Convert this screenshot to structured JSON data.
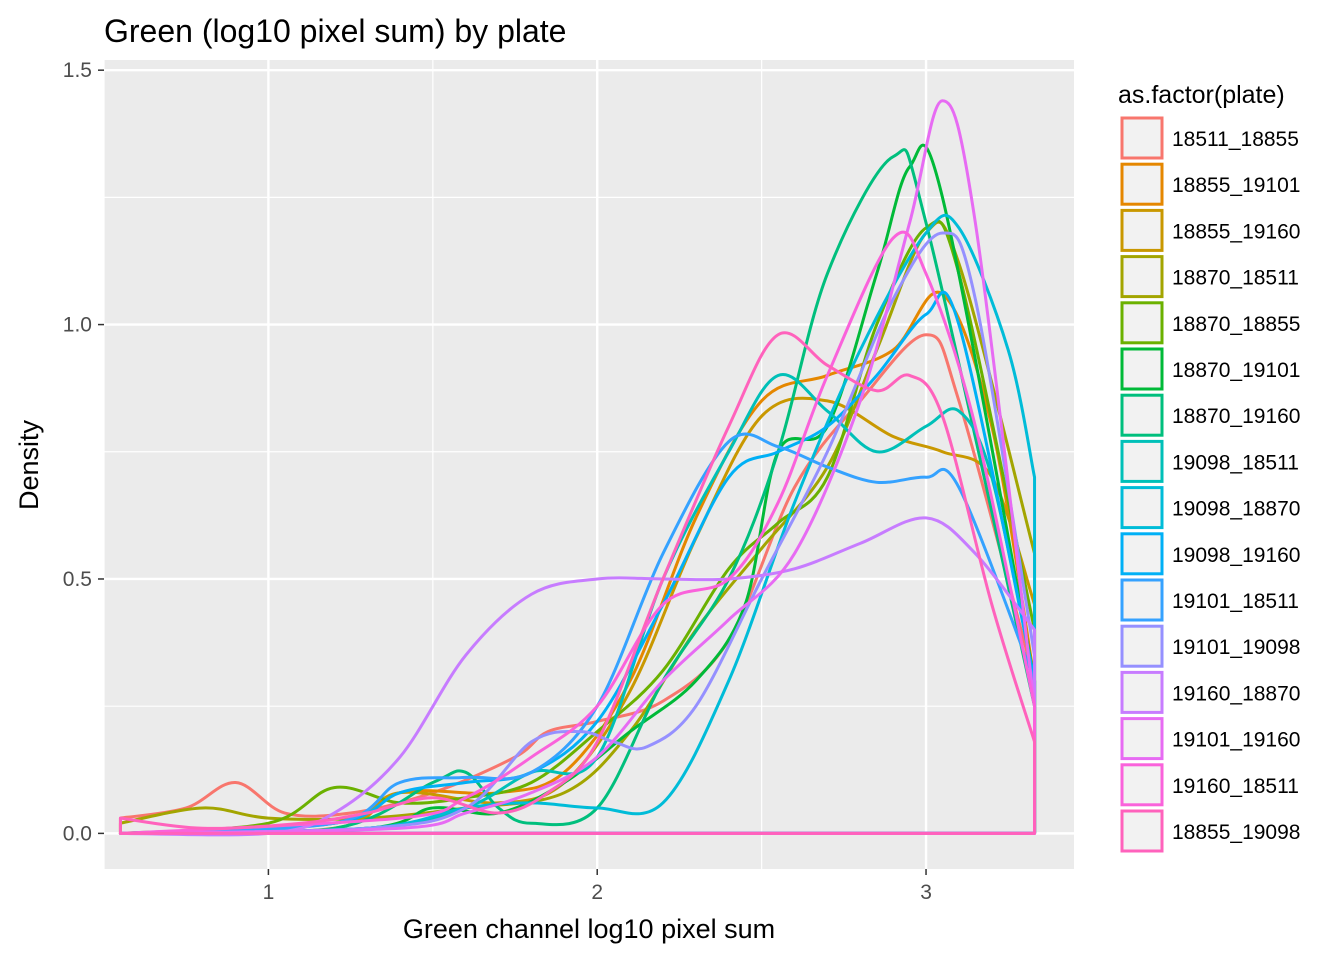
{
  "chart_data": {
    "type": "density",
    "title": "Green (log10 pixel sum) by plate",
    "xlabel": "Green channel log10 pixel sum",
    "ylabel": "Density",
    "xlim": [
      0.5,
      3.45
    ],
    "ylim": [
      -0.07,
      1.52
    ],
    "xticks": [
      1,
      2,
      3
    ],
    "xtick_labels": [
      "1",
      "2",
      "3"
    ],
    "yticks": [
      0,
      0.5,
      1,
      1.5
    ],
    "ytick_labels": [
      "0.0",
      "0.5",
      "1.0",
      "1.5"
    ],
    "x_range": [
      0.55,
      3.33
    ],
    "legend_title": "as.factor(plate)",
    "legend_position": "right",
    "series": [
      {
        "name": "18511_18855",
        "color": "#F8766D",
        "points": [
          [
            0.55,
            0.03
          ],
          [
            0.75,
            0.05
          ],
          [
            0.9,
            0.1
          ],
          [
            1.05,
            0.04
          ],
          [
            1.25,
            0.04
          ],
          [
            1.5,
            0.08
          ],
          [
            1.75,
            0.15
          ],
          [
            1.85,
            0.2
          ],
          [
            2.0,
            0.22
          ],
          [
            2.2,
            0.26
          ],
          [
            2.4,
            0.38
          ],
          [
            2.6,
            0.68
          ],
          [
            2.8,
            0.85
          ],
          [
            3.0,
            0.98
          ],
          [
            3.1,
            0.85
          ],
          [
            3.33,
            0.3
          ]
        ]
      },
      {
        "name": "18855_19101",
        "color": "#E58700",
        "points": [
          [
            0.55,
            0.0
          ],
          [
            1.2,
            0.01
          ],
          [
            1.4,
            0.08
          ],
          [
            1.7,
            0.08
          ],
          [
            1.9,
            0.12
          ],
          [
            2.1,
            0.3
          ],
          [
            2.3,
            0.62
          ],
          [
            2.5,
            0.85
          ],
          [
            2.7,
            0.9
          ],
          [
            2.9,
            0.95
          ],
          [
            3.05,
            1.06
          ],
          [
            3.2,
            0.8
          ],
          [
            3.33,
            0.3
          ]
        ]
      },
      {
        "name": "18855_19160",
        "color": "#C99800",
        "points": [
          [
            0.55,
            0.0
          ],
          [
            1.2,
            0.02
          ],
          [
            1.4,
            0.08
          ],
          [
            1.7,
            0.06
          ],
          [
            1.9,
            0.1
          ],
          [
            2.1,
            0.28
          ],
          [
            2.3,
            0.58
          ],
          [
            2.5,
            0.82
          ],
          [
            2.7,
            0.85
          ],
          [
            2.9,
            0.78
          ],
          [
            3.05,
            0.75
          ],
          [
            3.2,
            0.7
          ],
          [
            3.33,
            0.45
          ]
        ]
      },
      {
        "name": "18870_18511",
        "color": "#A3A500",
        "points": [
          [
            0.55,
            0.02
          ],
          [
            0.8,
            0.05
          ],
          [
            1.0,
            0.03
          ],
          [
            1.3,
            0.03
          ],
          [
            1.6,
            0.05
          ],
          [
            1.9,
            0.08
          ],
          [
            2.1,
            0.2
          ],
          [
            2.3,
            0.4
          ],
          [
            2.5,
            0.56
          ],
          [
            2.7,
            0.72
          ],
          [
            2.85,
            0.95
          ],
          [
            3.0,
            1.18
          ],
          [
            3.1,
            1.12
          ],
          [
            3.33,
            0.55
          ]
        ]
      },
      {
        "name": "18870_18855",
        "color": "#6BB100",
        "points": [
          [
            0.55,
            0.0
          ],
          [
            1.0,
            0.02
          ],
          [
            1.2,
            0.09
          ],
          [
            1.4,
            0.06
          ],
          [
            1.6,
            0.07
          ],
          [
            1.8,
            0.1
          ],
          [
            2.0,
            0.2
          ],
          [
            2.2,
            0.32
          ],
          [
            2.4,
            0.52
          ],
          [
            2.55,
            0.61
          ],
          [
            2.7,
            0.7
          ],
          [
            2.85,
            1.0
          ],
          [
            3.0,
            1.19
          ],
          [
            3.1,
            1.1
          ],
          [
            3.33,
            0.4
          ]
        ]
      },
      {
        "name": "18870_19101",
        "color": "#00BA38",
        "points": [
          [
            0.55,
            0.0
          ],
          [
            1.3,
            0.01
          ],
          [
            1.5,
            0.05
          ],
          [
            1.7,
            0.04
          ],
          [
            1.9,
            0.1
          ],
          [
            2.1,
            0.2
          ],
          [
            2.3,
            0.3
          ],
          [
            2.45,
            0.45
          ],
          [
            2.55,
            0.75
          ],
          [
            2.7,
            0.8
          ],
          [
            2.85,
            1.1
          ],
          [
            2.95,
            1.31
          ],
          [
            3.05,
            1.25
          ],
          [
            3.33,
            0.3
          ]
        ]
      },
      {
        "name": "18870_19160",
        "color": "#00BF7D",
        "points": [
          [
            0.55,
            0.0
          ],
          [
            1.2,
            0.01
          ],
          [
            1.5,
            0.1
          ],
          [
            1.6,
            0.12
          ],
          [
            1.7,
            0.05
          ],
          [
            1.8,
            0.02
          ],
          [
            2.0,
            0.05
          ],
          [
            2.2,
            0.3
          ],
          [
            2.4,
            0.5
          ],
          [
            2.55,
            0.75
          ],
          [
            2.7,
            1.1
          ],
          [
            2.9,
            1.33
          ],
          [
            3.0,
            1.2
          ],
          [
            3.33,
            0.25
          ]
        ]
      },
      {
        "name": "19098_18511",
        "color": "#00C0B8",
        "points": [
          [
            0.55,
            0.0
          ],
          [
            1.3,
            0.01
          ],
          [
            1.6,
            0.05
          ],
          [
            1.8,
            0.12
          ],
          [
            2.0,
            0.15
          ],
          [
            2.2,
            0.5
          ],
          [
            2.4,
            0.75
          ],
          [
            2.55,
            0.9
          ],
          [
            2.7,
            0.83
          ],
          [
            2.85,
            0.75
          ],
          [
            3.0,
            0.8
          ],
          [
            3.1,
            0.83
          ],
          [
            3.2,
            0.7
          ],
          [
            3.33,
            0.3
          ]
        ]
      },
      {
        "name": "19098_18870",
        "color": "#00BCD8",
        "points": [
          [
            0.55,
            0.0
          ],
          [
            1.3,
            0.01
          ],
          [
            1.6,
            0.05
          ],
          [
            1.8,
            0.06
          ],
          [
            2.0,
            0.05
          ],
          [
            2.2,
            0.06
          ],
          [
            2.4,
            0.3
          ],
          [
            2.6,
            0.65
          ],
          [
            2.8,
            0.95
          ],
          [
            3.0,
            1.18
          ],
          [
            3.1,
            1.19
          ],
          [
            3.25,
            0.95
          ],
          [
            3.33,
            0.7
          ]
        ]
      },
      {
        "name": "19098_19160",
        "color": "#00B0F6",
        "points": [
          [
            0.55,
            0.0
          ],
          [
            1.2,
            0.02
          ],
          [
            1.4,
            0.08
          ],
          [
            1.6,
            0.1
          ],
          [
            1.8,
            0.12
          ],
          [
            2.0,
            0.22
          ],
          [
            2.2,
            0.45
          ],
          [
            2.4,
            0.7
          ],
          [
            2.55,
            0.75
          ],
          [
            2.7,
            0.8
          ],
          [
            2.85,
            0.9
          ],
          [
            3.0,
            1.02
          ],
          [
            3.1,
            1.0
          ],
          [
            3.33,
            0.3
          ]
        ]
      },
      {
        "name": "19101_18511",
        "color": "#35A2FF",
        "points": [
          [
            0.55,
            0.0
          ],
          [
            1.2,
            0.02
          ],
          [
            1.4,
            0.1
          ],
          [
            1.6,
            0.11
          ],
          [
            1.8,
            0.12
          ],
          [
            2.0,
            0.25
          ],
          [
            2.2,
            0.55
          ],
          [
            2.4,
            0.77
          ],
          [
            2.55,
            0.76
          ],
          [
            2.7,
            0.72
          ],
          [
            2.85,
            0.69
          ],
          [
            3.0,
            0.7
          ],
          [
            3.1,
            0.68
          ],
          [
            3.33,
            0.3
          ]
        ]
      },
      {
        "name": "19101_19098",
        "color": "#9590FF",
        "points": [
          [
            0.55,
            0.0
          ],
          [
            1.3,
            0.01
          ],
          [
            1.6,
            0.05
          ],
          [
            1.8,
            0.18
          ],
          [
            1.95,
            0.2
          ],
          [
            2.05,
            0.18
          ],
          [
            2.15,
            0.17
          ],
          [
            2.3,
            0.25
          ],
          [
            2.5,
            0.5
          ],
          [
            2.7,
            0.75
          ],
          [
            2.9,
            1.05
          ],
          [
            3.05,
            1.18
          ],
          [
            3.15,
            1.05
          ],
          [
            3.33,
            0.35
          ]
        ]
      },
      {
        "name": "19160_18870",
        "color": "#C77CFF",
        "points": [
          [
            0.55,
            0.0
          ],
          [
            1.0,
            0.0
          ],
          [
            1.2,
            0.04
          ],
          [
            1.4,
            0.15
          ],
          [
            1.6,
            0.35
          ],
          [
            1.8,
            0.47
          ],
          [
            2.0,
            0.5
          ],
          [
            2.2,
            0.5
          ],
          [
            2.4,
            0.5
          ],
          [
            2.6,
            0.52
          ],
          [
            2.8,
            0.57
          ],
          [
            3.0,
            0.62
          ],
          [
            3.15,
            0.55
          ],
          [
            3.33,
            0.4
          ]
        ]
      },
      {
        "name": "19101_19160",
        "color": "#E76BF3",
        "points": [
          [
            0.55,
            0.0
          ],
          [
            1.4,
            0.01
          ],
          [
            1.6,
            0.04
          ],
          [
            1.8,
            0.08
          ],
          [
            2.0,
            0.15
          ],
          [
            2.2,
            0.3
          ],
          [
            2.4,
            0.42
          ],
          [
            2.6,
            0.55
          ],
          [
            2.8,
            0.85
          ],
          [
            2.95,
            1.2
          ],
          [
            3.05,
            1.44
          ],
          [
            3.15,
            1.2
          ],
          [
            3.33,
            0.25
          ]
        ]
      },
      {
        "name": "19160_18511",
        "color": "#FA62DB",
        "points": [
          [
            0.55,
            0.0
          ],
          [
            1.4,
            0.03
          ],
          [
            1.6,
            0.07
          ],
          [
            1.8,
            0.15
          ],
          [
            2.0,
            0.25
          ],
          [
            2.2,
            0.45
          ],
          [
            2.4,
            0.5
          ],
          [
            2.55,
            0.65
          ],
          [
            2.7,
            0.9
          ],
          [
            2.9,
            1.17
          ],
          [
            3.0,
            1.1
          ],
          [
            3.15,
            0.8
          ],
          [
            3.33,
            0.25
          ]
        ]
      },
      {
        "name": "18855_19098",
        "color": "#FF62BC",
        "points": [
          [
            0.55,
            0.03
          ],
          [
            0.8,
            0.01
          ],
          [
            1.1,
            0.02
          ],
          [
            1.3,
            0.04
          ],
          [
            1.5,
            0.07
          ],
          [
            1.7,
            0.04
          ],
          [
            1.85,
            0.08
          ],
          [
            2.0,
            0.18
          ],
          [
            2.2,
            0.5
          ],
          [
            2.4,
            0.8
          ],
          [
            2.55,
            0.98
          ],
          [
            2.7,
            0.92
          ],
          [
            2.85,
            0.87
          ],
          [
            2.95,
            0.9
          ],
          [
            3.05,
            0.82
          ],
          [
            3.2,
            0.45
          ],
          [
            3.33,
            0.18
          ]
        ]
      }
    ]
  }
}
